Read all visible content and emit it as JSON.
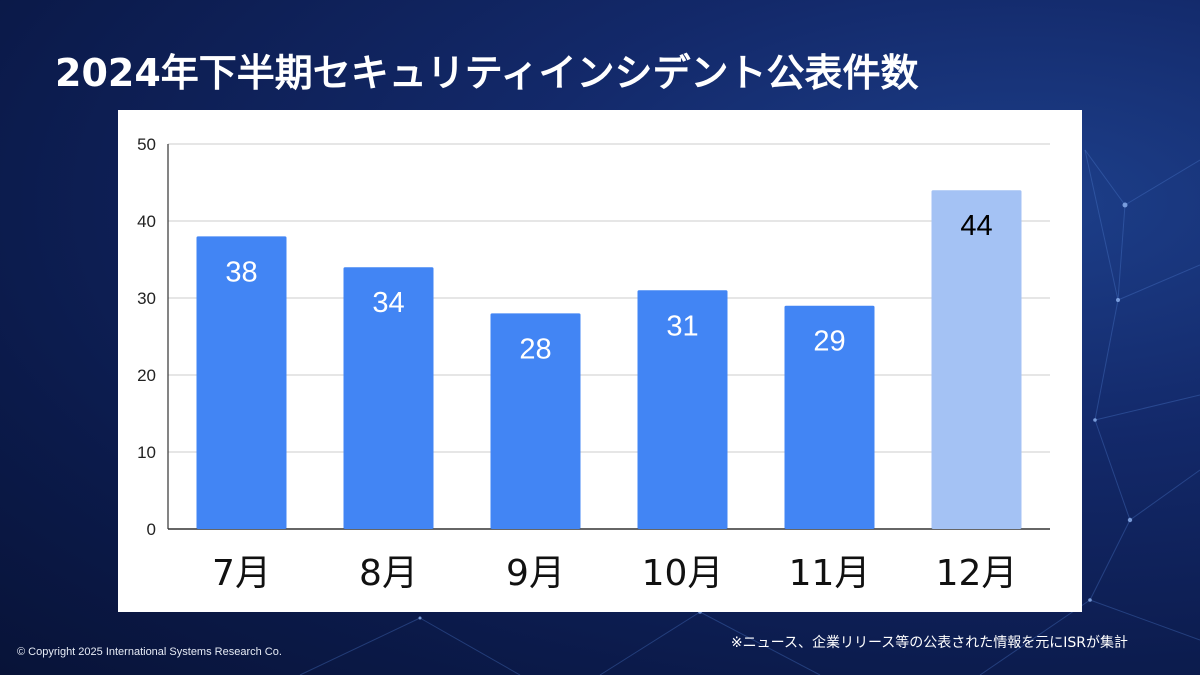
{
  "slide": {
    "title": "2024年下半期セキュリティインシデント公表件数",
    "note": "※ニュース、企業リリース等の公表された情報を元にISRが集計",
    "copyright": "© Copyright 2025 International Systems Research Co."
  },
  "chart_data": {
    "type": "bar",
    "title": "",
    "xlabel": "",
    "ylabel": "",
    "categories": [
      "7月",
      "8月",
      "9月",
      "10月",
      "11月",
      "12月"
    ],
    "values": [
      38,
      34,
      28,
      31,
      29,
      44
    ],
    "ylim": [
      0,
      50
    ],
    "yticks": [
      0,
      10,
      20,
      30,
      40,
      50
    ],
    "grid": true,
    "legend": "none",
    "colors": {
      "bar": "#4285f4",
      "highlight_bar": "#a4c2f4",
      "label_on_bar": "#ffffff",
      "label_on_highlight": "#000000",
      "gridline": "#cccccc",
      "axis": "#333333"
    },
    "highlight_index": 5
  }
}
